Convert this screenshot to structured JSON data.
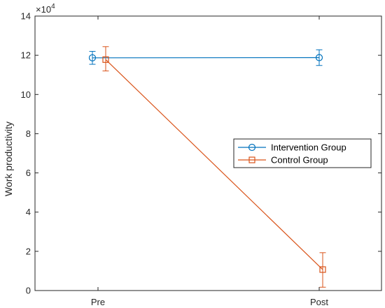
{
  "chart_data": {
    "type": "line",
    "title": "",
    "xlabel": "",
    "ylabel": "Work productivity",
    "categories": [
      "Pre",
      "Post"
    ],
    "y_tick_labels": [
      "0",
      "2",
      "4",
      "6",
      "8",
      "10",
      "12",
      "14"
    ],
    "y_exponent_base": "×10",
    "y_exponent_power": "4",
    "ylim": [
      0,
      140000
    ],
    "grid": false,
    "legend_position": "right",
    "series": [
      {
        "name": "Intervention Group",
        "color": "#0072BD",
        "marker": "circle",
        "values": [
          118700,
          118800
        ],
        "error_low": [
          3300,
          4000
        ],
        "error_high": [
          3300,
          4000
        ]
      },
      {
        "name": "Control Group",
        "color": "#D95319",
        "marker": "square",
        "values": [
          117800,
          10700
        ],
        "error_low": [
          5800,
          9000
        ],
        "error_high": [
          6600,
          8600
        ]
      }
    ]
  }
}
